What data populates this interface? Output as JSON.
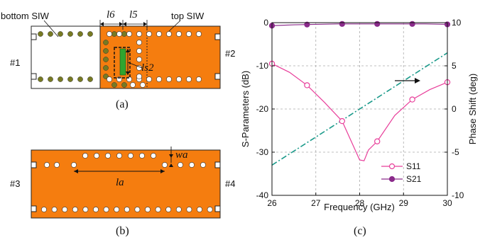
{
  "panel_a": {
    "label_bottom": "bottom SIW",
    "label_top": "top SIW",
    "port1": "#1",
    "port2": "#2",
    "dim_l6": "l6",
    "dim_l5": "l5",
    "dim_ls2": "ls2",
    "caption": "(a)"
  },
  "panel_b": {
    "port3": "#3",
    "port4": "#4",
    "dim_la": "la",
    "dim_wa": "wa",
    "caption": "(b)"
  },
  "colors": {
    "substrate": "#f57d0f",
    "via_olive": "#777a22",
    "slot_green": "#2fa52f",
    "s11": "#e83e9a",
    "s21": "#8a2a8a",
    "phase": "#1a9a8a"
  },
  "chart_data": {
    "type": "line",
    "caption": "(c)",
    "xlabel": "Frequency (GHz)",
    "ylabel_left": "S-Parameters (dB)",
    "ylabel_right": "Phase Shift (deg)",
    "xlim": [
      26,
      30
    ],
    "ylim_left": [
      -40,
      0
    ],
    "ylim_right": [
      -10,
      10
    ],
    "xticks": [
      "26",
      "27",
      "28",
      "29",
      "30"
    ],
    "yticks_left": [
      "0",
      "-10",
      "-20",
      "-30",
      "-40"
    ],
    "yticks_right": [
      "10",
      "5",
      "0",
      "-5",
      "-10"
    ],
    "grid": true,
    "legend_position": "bottom-right",
    "series": [
      {
        "name": "S11",
        "axis": "left",
        "marker": "open-circle",
        "x": [
          26,
          26.4,
          26.8,
          27.2,
          27.6,
          28.0,
          28.1,
          28.2,
          28.4,
          28.8,
          29.2,
          29.6,
          30
        ],
        "y": [
          -9.5,
          -11.5,
          -14.5,
          -18.5,
          -22.8,
          -31.8,
          -32.0,
          -29.5,
          -27.5,
          -21.5,
          -17.8,
          -15.5,
          -13.8
        ],
        "marker_x": [
          26,
          26.8,
          27.6,
          28.4,
          29.2,
          30
        ]
      },
      {
        "name": "S21",
        "axis": "left",
        "marker": "filled-circle",
        "x": [
          26,
          26.5,
          27,
          27.5,
          28,
          28.5,
          29,
          29.5,
          30
        ],
        "y": [
          -0.7,
          -0.5,
          -0.4,
          -0.3,
          -0.3,
          -0.3,
          -0.3,
          -0.3,
          -0.4
        ],
        "marker_x": [
          26,
          26.8,
          27.6,
          28.4,
          29.2,
          30
        ]
      },
      {
        "name": "Phase Shift",
        "axis": "right",
        "marker": "none",
        "style": "dash-dot",
        "x": [
          26,
          30
        ],
        "y": [
          -6.5,
          6.5
        ]
      }
    ]
  }
}
